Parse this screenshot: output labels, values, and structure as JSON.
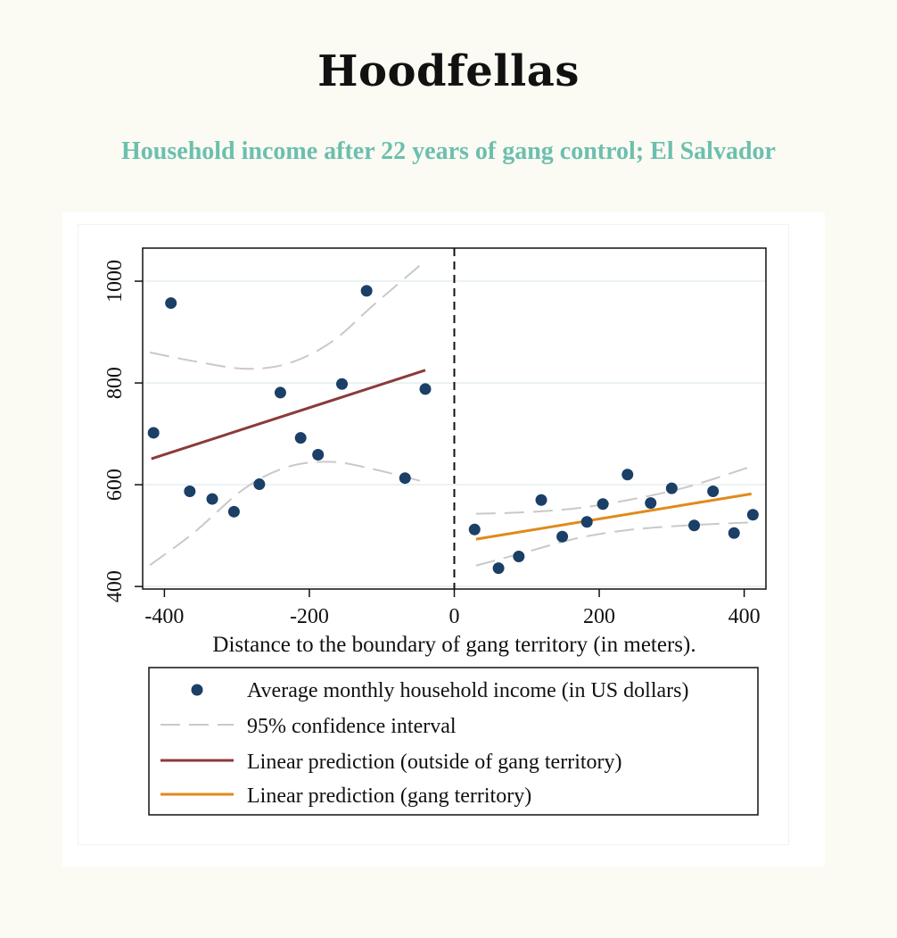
{
  "title": "Hoodfellas",
  "subtitle": "Household income after 22 years of gang control; El Salvador",
  "chart_data": {
    "type": "scatter",
    "xlabel": "Distance to the boundary of gang territory (in meters).",
    "ylabel": "",
    "xlim": [
      -430,
      430
    ],
    "ylim": [
      395,
      1065
    ],
    "xticks": [
      -400,
      -200,
      0,
      200,
      400
    ],
    "yticks": [
      400,
      600,
      800,
      1000
    ],
    "xtick_labels": [
      "-400",
      "-200",
      "0",
      "200",
      "400"
    ],
    "ytick_labels": [
      "400",
      "600",
      "800",
      "1000"
    ],
    "grid": "horizontal",
    "cutoff_x": 0,
    "series": [
      {
        "name": "Average monthly household income (in US dollars)",
        "kind": "scatter",
        "color": "#1b3f66",
        "points": [
          {
            "x": -415,
            "y": 702
          },
          {
            "x": -391,
            "y": 957
          },
          {
            "x": -365,
            "y": 587
          },
          {
            "x": -334,
            "y": 572
          },
          {
            "x": -304,
            "y": 547
          },
          {
            "x": -269,
            "y": 601
          },
          {
            "x": -240,
            "y": 781
          },
          {
            "x": -212,
            "y": 692
          },
          {
            "x": -188,
            "y": 659
          },
          {
            "x": -155,
            "y": 798
          },
          {
            "x": -121,
            "y": 981
          },
          {
            "x": -68,
            "y": 613
          },
          {
            "x": -40,
            "y": 788
          },
          {
            "x": 28,
            "y": 512
          },
          {
            "x": 61,
            "y": 436
          },
          {
            "x": 89,
            "y": 459
          },
          {
            "x": 120,
            "y": 570
          },
          {
            "x": 149,
            "y": 498
          },
          {
            "x": 183,
            "y": 527
          },
          {
            "x": 205,
            "y": 562
          },
          {
            "x": 239,
            "y": 620
          },
          {
            "x": 271,
            "y": 564
          },
          {
            "x": 300,
            "y": 593
          },
          {
            "x": 331,
            "y": 520
          },
          {
            "x": 357,
            "y": 587
          },
          {
            "x": 386,
            "y": 505
          },
          {
            "x": 412,
            "y": 541
          }
        ]
      },
      {
        "name": "95% confidence interval",
        "kind": "dashed",
        "color": "#c9c9c9",
        "segments": [
          [
            [
              -420,
              860
            ],
            [
              -360,
              843
            ],
            [
              -290,
              828
            ],
            [
              -230,
              838
            ],
            [
              -170,
              880
            ],
            [
              -110,
              955
            ],
            [
              -40,
              1040
            ]
          ],
          [
            [
              -420,
              442
            ],
            [
              -360,
              505
            ],
            [
              -290,
              592
            ],
            [
              -230,
              635
            ],
            [
              -170,
              645
            ],
            [
              -110,
              630
            ],
            [
              -40,
              605
            ]
          ],
          [
            [
              30,
              543
            ],
            [
              100,
              546
            ],
            [
              170,
              554
            ],
            [
              240,
              570
            ],
            [
              320,
              595
            ],
            [
              410,
              636
            ]
          ],
          [
            [
              30,
              441
            ],
            [
              100,
              468
            ],
            [
              170,
              495
            ],
            [
              240,
              511
            ],
            [
              320,
              520
            ],
            [
              410,
              526
            ]
          ]
        ]
      },
      {
        "name": "Linear prediction (outside of gang territory)",
        "kind": "line",
        "color": "#8b3a3a",
        "points": [
          {
            "x": -418,
            "y": 651
          },
          {
            "x": -40,
            "y": 825
          }
        ]
      },
      {
        "name": "Linear prediction (gang territory)",
        "kind": "line",
        "color": "#e08a1a",
        "points": [
          {
            "x": 30,
            "y": 493
          },
          {
            "x": 410,
            "y": 582
          }
        ]
      }
    ],
    "legend": {
      "position": "below",
      "entries": [
        {
          "label": "Average monthly household income (in US dollars)",
          "symbol": "dot",
          "color": "#1b3f66"
        },
        {
          "label": "95% confidence interval",
          "symbol": "dashed",
          "color": "#c9c9c9"
        },
        {
          "label": "Linear prediction (outside of gang territory)",
          "symbol": "line",
          "color": "#8b3a3a"
        },
        {
          "label": "Linear prediction (gang territory)",
          "symbol": "line",
          "color": "#e08a1a"
        }
      ]
    }
  }
}
